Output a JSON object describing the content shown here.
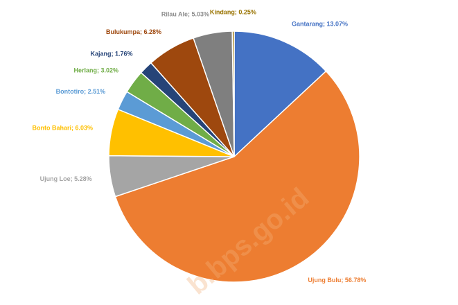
{
  "chart_data": {
    "type": "pie",
    "categories": [
      "Gantarang",
      "Ujung Bulu",
      "Ujung Loe",
      "Bonto Bahari",
      "Bontotiro",
      "Herlang",
      "Kajang",
      "Bulukumpa",
      "Rilau Ale",
      "Kindang"
    ],
    "values": [
      13.07,
      56.78,
      5.28,
      6.03,
      2.51,
      3.02,
      1.76,
      6.28,
      5.03,
      0.25
    ],
    "value_labels": [
      "Gantarang; 13.07%",
      "Ujung Bulu; 56.78%",
      "Ujung Loe; 5.28%",
      "Bonto Bahari; 6.03%",
      "Bontotiro; 2.51%",
      "Herlang; 3.02%",
      "Kajang; 1.76%",
      "Bulukumpa; 6.28%",
      "Rilau Ale; 5.03%",
      "Kindang; 0.25%"
    ],
    "colors": [
      "#4472c4",
      "#ed7d31",
      "#a5a5a5",
      "#ffc000",
      "#5b9bd5",
      "#70ad47",
      "#264478",
      "#9e480e",
      "#7f7f7f",
      "#997300"
    ],
    "label_colors": [
      "#4472c4",
      "#ed7d31",
      "#a5a5a5",
      "#ffc000",
      "#5b9bd5",
      "#70ad47",
      "#264478",
      "#9e480e",
      "#8c8c8c",
      "#997300"
    ],
    "watermark": "b.bps.go.id"
  }
}
